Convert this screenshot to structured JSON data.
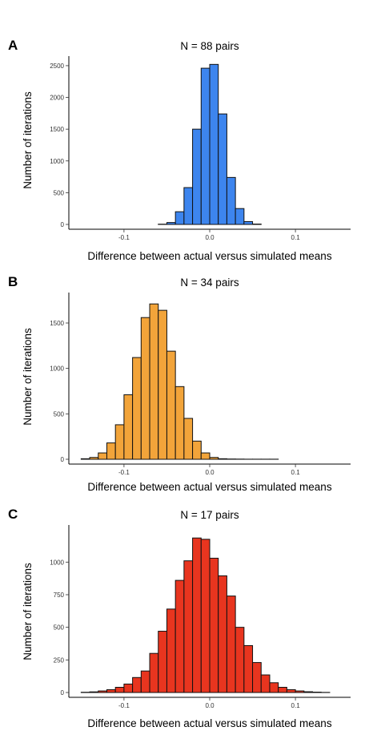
{
  "chart_data": [
    {
      "panel": "A",
      "type": "bar",
      "title": "N = 88 pairs",
      "xlabel": "Difference between actual versus simulated means",
      "ylabel": "Number of iterations",
      "color": "#3d85ee",
      "xlim": [
        -0.155,
        0.155
      ],
      "ylim": [
        0,
        2600
      ],
      "xticks": [
        -0.1,
        0.0,
        0.1
      ],
      "xtick_labels": [
        "-0.1",
        "0.0",
        "0.1"
      ],
      "yticks": [
        0,
        500,
        1000,
        1500,
        2000,
        2500
      ],
      "ytick_labels": [
        "0",
        "500",
        "1000",
        "1500",
        "2000",
        "2500"
      ],
      "bin_width": 0.01,
      "x": [
        -0.145,
        -0.135,
        -0.125,
        -0.115,
        -0.105,
        -0.095,
        -0.085,
        -0.075,
        -0.065,
        -0.055,
        -0.045,
        -0.035,
        -0.025,
        -0.015,
        -0.005,
        0.005,
        0.015,
        0.025,
        0.035,
        0.045,
        0.055,
        0.065,
        0.075,
        0.085,
        0.095,
        0.105,
        0.115,
        0.125,
        0.135,
        0.145
      ],
      "values": [
        0,
        0,
        0,
        0,
        0,
        0,
        0,
        0,
        0,
        4,
        30,
        200,
        580,
        1500,
        2460,
        2520,
        1740,
        740,
        250,
        45,
        6,
        0,
        0,
        0,
        0,
        0,
        0,
        0,
        0,
        0
      ],
      "grid": false
    },
    {
      "panel": "B",
      "type": "bar",
      "title": "N = 34 pairs",
      "xlabel": "Difference between actual versus simulated means",
      "ylabel": "Number of iterations",
      "color": "#f2a43a",
      "xlim": [
        -0.155,
        0.155
      ],
      "ylim": [
        0,
        1800
      ],
      "xticks": [
        -0.1,
        0.0,
        0.1
      ],
      "xtick_labels": [
        "-0.1",
        "0.0",
        "0.1"
      ],
      "yticks": [
        0,
        500,
        1000,
        1500
      ],
      "ytick_labels": [
        "0",
        "500",
        "1000",
        "1500"
      ],
      "bin_width": 0.01,
      "x": [
        -0.145,
        -0.135,
        -0.125,
        -0.115,
        -0.105,
        -0.095,
        -0.085,
        -0.075,
        -0.065,
        -0.055,
        -0.045,
        -0.035,
        -0.025,
        -0.015,
        -0.005,
        0.005,
        0.015,
        0.025,
        0.035,
        0.045,
        0.055,
        0.065,
        0.075,
        0.085,
        0.095,
        0.105,
        0.115,
        0.125,
        0.135,
        0.145
      ],
      "values": [
        6,
        20,
        70,
        180,
        380,
        710,
        1120,
        1560,
        1710,
        1640,
        1190,
        800,
        450,
        200,
        70,
        20,
        6,
        3,
        2,
        1,
        1,
        1,
        1,
        0,
        0,
        0,
        0,
        0,
        0,
        0
      ],
      "grid": false
    },
    {
      "panel": "C",
      "type": "bar",
      "title": "N = 17 pairs",
      "xlabel": "Difference between actual versus simulated means",
      "ylabel": "Number of iterations",
      "color": "#e8351f",
      "xlim": [
        -0.155,
        0.155
      ],
      "ylim": [
        0,
        1260
      ],
      "xticks": [
        -0.1,
        0.0,
        0.1
      ],
      "xtick_labels": [
        "-0.1",
        "0.0",
        "0.1"
      ],
      "yticks": [
        0,
        250,
        500,
        750,
        1000
      ],
      "ytick_labels": [
        "0",
        "250",
        "500",
        "750",
        "1000"
      ],
      "bin_width": 0.01,
      "x": [
        -0.145,
        -0.135,
        -0.125,
        -0.115,
        -0.105,
        -0.095,
        -0.085,
        -0.075,
        -0.065,
        -0.055,
        -0.045,
        -0.035,
        -0.025,
        -0.015,
        -0.005,
        0.005,
        0.015,
        0.025,
        0.035,
        0.045,
        0.055,
        0.065,
        0.075,
        0.085,
        0.095,
        0.105,
        0.115,
        0.125,
        0.135,
        0.145
      ],
      "values": [
        2,
        5,
        12,
        22,
        40,
        65,
        115,
        165,
        300,
        470,
        640,
        860,
        1010,
        1185,
        1175,
        1030,
        895,
        740,
        500,
        360,
        230,
        135,
        75,
        40,
        22,
        12,
        6,
        3,
        1,
        0
      ],
      "grid": false
    }
  ]
}
